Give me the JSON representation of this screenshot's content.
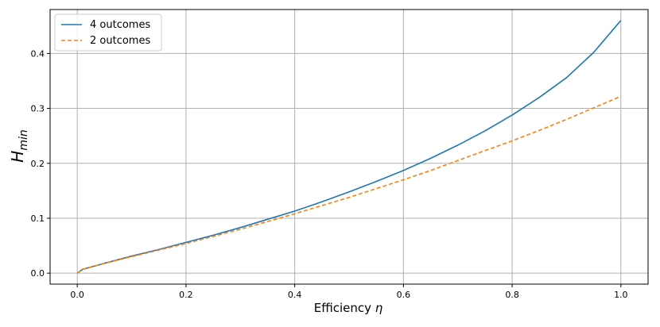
{
  "chart_data": {
    "type": "line",
    "xlabel_text": "Efficiency ",
    "xlabel_symbol": "η",
    "ylabel_main": "H",
    "ylabel_sub": "min",
    "xlim": [
      -0.05,
      1.05
    ],
    "ylim": [
      -0.02,
      0.48
    ],
    "grid": true,
    "legend_position": "top-left",
    "x_ticks": [
      0.0,
      0.2,
      0.4,
      0.6,
      0.8,
      1.0
    ],
    "x_tick_labels": [
      "0.0",
      "0.2",
      "0.4",
      "0.6",
      "0.8",
      "1.0"
    ],
    "y_ticks": [
      0.0,
      0.1,
      0.2,
      0.3,
      0.4
    ],
    "y_tick_labels": [
      "0.0",
      "0.1",
      "0.2",
      "0.3",
      "0.4"
    ],
    "x": [
      0.0,
      0.01,
      0.05,
      0.1,
      0.15,
      0.2,
      0.25,
      0.3,
      0.35,
      0.4,
      0.45,
      0.5,
      0.55,
      0.6,
      0.65,
      0.7,
      0.75,
      0.8,
      0.85,
      0.9,
      0.95,
      1.0
    ],
    "series": [
      {
        "name": "4 outcomes",
        "color": "#1f77b4",
        "dash": "solid",
        "values": [
          0.0,
          0.007,
          0.018,
          0.031,
          0.043,
          0.056,
          0.069,
          0.083,
          0.098,
          0.113,
          0.13,
          0.148,
          0.167,
          0.187,
          0.209,
          0.233,
          0.259,
          0.288,
          0.32,
          0.356,
          0.402,
          0.46
        ]
      },
      {
        "name": "2 outcomes",
        "color": "#ff7f0e",
        "dash": "dashed",
        "values": [
          0.0,
          0.007,
          0.018,
          0.03,
          0.042,
          0.054,
          0.067,
          0.08,
          0.094,
          0.108,
          0.123,
          0.138,
          0.154,
          0.17,
          0.187,
          0.205,
          0.223,
          0.241,
          0.26,
          0.28,
          0.301,
          0.322
        ]
      }
    ]
  }
}
